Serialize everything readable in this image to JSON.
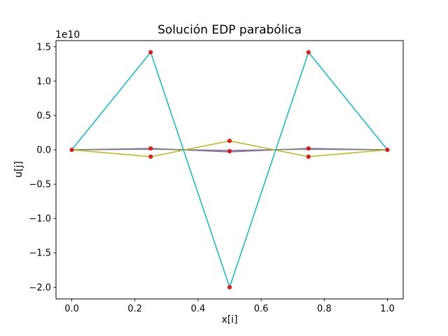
{
  "chart_data": {
    "type": "line",
    "title": "Solución EDP parabólica",
    "xlabel": "x[i]",
    "ylabel": "u[j]",
    "y_offset_text": "1e10",
    "values_unit": "1e10",
    "x": [
      0.0,
      0.25,
      0.5,
      0.75,
      1.0
    ],
    "series": [
      {
        "name": "purple",
        "color": "#9467bd",
        "values": [
          0.0,
          0.01,
          -0.01,
          0.01,
          0.0
        ]
      },
      {
        "name": "gray",
        "color": "#7f7f7f",
        "values": [
          0.0,
          0.02,
          -0.03,
          0.02,
          0.0
        ]
      },
      {
        "name": "olive",
        "color": "#bcbd22",
        "values": [
          0.0,
          -0.1,
          0.13,
          -0.1,
          0.0
        ]
      },
      {
        "name": "cyan",
        "color": "#17becf",
        "values": [
          0.0,
          1.42,
          -2.0,
          1.42,
          0.0
        ]
      }
    ],
    "markers": {
      "color": "#e31a1c",
      "points": [
        [
          0.0,
          0.0
        ],
        [
          0.25,
          1.42
        ],
        [
          0.25,
          0.02
        ],
        [
          0.25,
          -0.1
        ],
        [
          0.5,
          0.13
        ],
        [
          0.5,
          -0.02
        ],
        [
          0.5,
          -2.0
        ],
        [
          0.75,
          1.42
        ],
        [
          0.75,
          0.02
        ],
        [
          0.75,
          -0.1
        ],
        [
          1.0,
          0.0
        ]
      ]
    },
    "xlim": [
      -0.05,
      1.05
    ],
    "ylim": [
      -2.17,
      1.59
    ],
    "x_ticks": [
      0.0,
      0.2,
      0.4,
      0.6,
      0.8,
      1.0
    ],
    "x_tick_labels": [
      "0.0",
      "0.2",
      "0.4",
      "0.6",
      "0.8",
      "1.0"
    ],
    "y_ticks": [
      -2.0,
      -1.5,
      -1.0,
      -0.5,
      0.0,
      0.5,
      1.0,
      1.5
    ],
    "y_tick_labels": [
      "−2.0",
      "−1.5",
      "−1.0",
      "−0.5",
      "0.0",
      "0.5",
      "1.0",
      "1.5"
    ],
    "grid": false,
    "legend": null
  }
}
